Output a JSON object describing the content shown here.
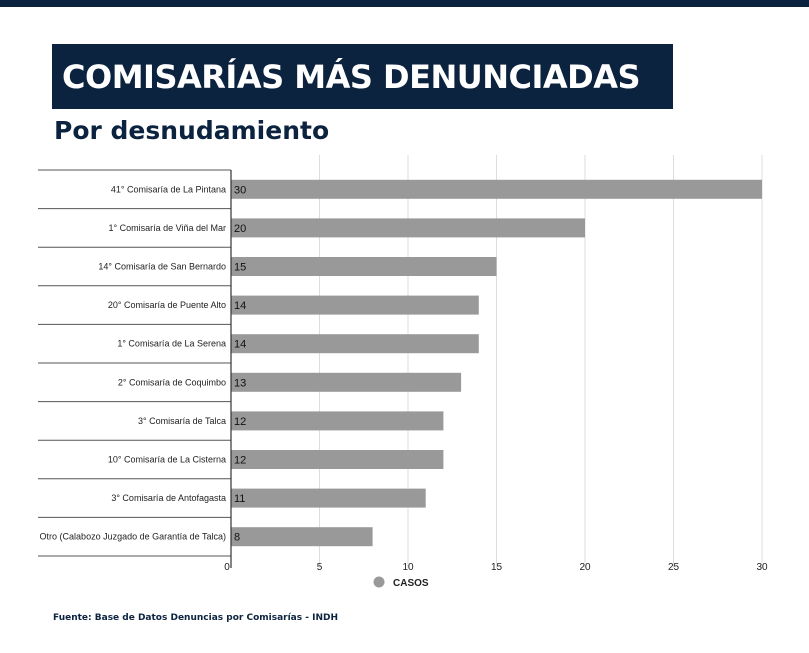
{
  "colors": {
    "navy": "#0c2340",
    "bar": "#999999",
    "grid": "#dddddd"
  },
  "header": {
    "title": "COMISARÍAS MÁS DENUNCIADAS",
    "subtitle": "Por desnudamiento"
  },
  "footer": {
    "source": "Fuente: Base de Datos Denuncias por Comisarías - INDH"
  },
  "chart_data": {
    "type": "bar",
    "orientation": "horizontal",
    "title": "COMISARÍAS MÁS DENUNCIADAS",
    "subtitle": "Por desnudamiento",
    "categories": [
      "41° Comisaría de La Pintana",
      "1° Comisaría de Viña del Mar",
      "14° Comisaría de San Bernardo",
      "20° Comisaría de Puente Alto",
      "1° Comisaría de La Serena",
      "2° Comisaría de Coquimbo",
      "3° Comisaría de Talca",
      "10° Comisaría de La Cisterna",
      "3° Comisaría de Antofagasta",
      "Otro (Calabozo Juzgado de Garantía de Talca)"
    ],
    "series": [
      {
        "name": "CASOS",
        "values": [
          30,
          20,
          15,
          14,
          14,
          13,
          12,
          12,
          11,
          8
        ]
      }
    ],
    "xlim": [
      0,
      30
    ],
    "xticks": [
      0,
      5,
      10,
      15,
      20,
      25,
      30
    ],
    "grid": true,
    "legend": "bottom-center",
    "data_labels": true
  }
}
